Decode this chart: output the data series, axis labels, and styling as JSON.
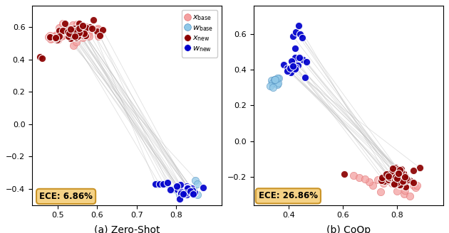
{
  "left_title": "(a) Zero-Shot",
  "right_title": "(b) CoOp",
  "ece_left": "ECE: 6.86%",
  "ece_right": "ECE: 26.86%",
  "color_x_base": "#f4a0a0",
  "color_w_base": "#90c8e8",
  "color_x_new": "#8b0000",
  "color_w_new": "#0000cc",
  "line_color": "#bbbbbb",
  "line_alpha": 0.45,
  "left_xlim": [
    0.435,
    0.915
  ],
  "left_ylim": [
    -0.5,
    0.73
  ],
  "right_xlim": [
    0.27,
    0.97
  ],
  "right_ylim": [
    -0.36,
    0.76
  ],
  "left_xticks": [
    0.5,
    0.6,
    0.7,
    0.8
  ],
  "right_xticks": [
    0.4,
    0.6,
    0.8
  ],
  "left_yticks": [
    -0.4,
    -0.2,
    0.0,
    0.2,
    0.4,
    0.6
  ],
  "right_yticks": [
    -0.2,
    0.0,
    0.2,
    0.4,
    0.6
  ]
}
